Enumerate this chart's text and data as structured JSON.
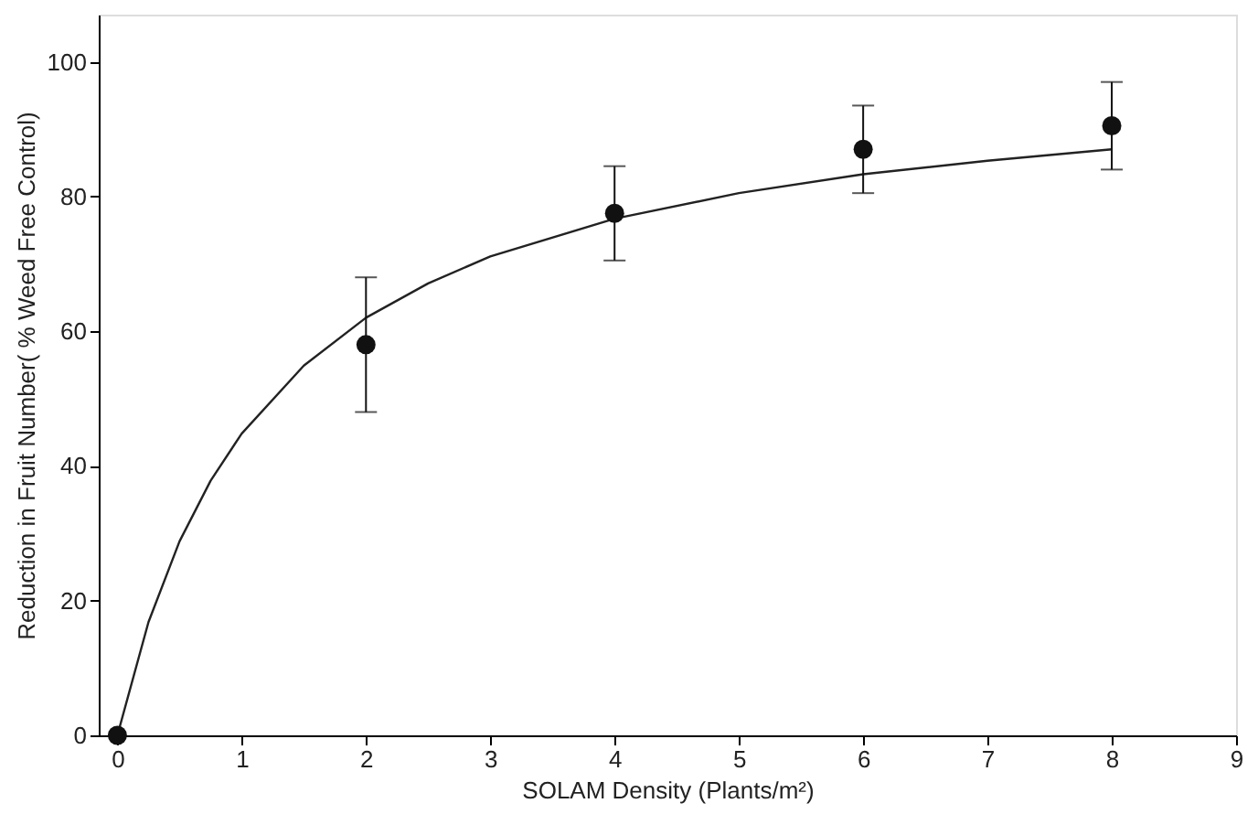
{
  "chart_data": {
    "type": "scatter",
    "xlabel": "SOLAM Density (Plants/m²)",
    "ylabel": "Reduction in Fruit Number( % Weed Free Control)",
    "xlim": [
      -0.15,
      9
    ],
    "xticks": [
      0,
      1,
      2,
      3,
      4,
      5,
      6,
      7,
      8,
      9
    ],
    "ylim": [
      0,
      107
    ],
    "yticks": [
      0,
      20,
      40,
      60,
      80,
      100
    ],
    "grid": false,
    "series": [
      {
        "type": "line",
        "color": "#222222",
        "marker": "none",
        "line_style": "solid",
        "x": [
          0,
          0.25,
          0.5,
          0.75,
          1,
          1.5,
          2,
          2.5,
          3,
          4,
          5,
          6,
          7,
          8
        ],
        "values": [
          0,
          16.8,
          28.8,
          37.8,
          44.8,
          54.9,
          62,
          67.1,
          71.1,
          76.7,
          80.5,
          83.3,
          85.3,
          87
        ]
      },
      {
        "color": "#111111",
        "marker": "circle",
        "x": [
          0,
          2,
          4,
          6,
          8
        ],
        "values": [
          0,
          58,
          77.5,
          87,
          90.5
        ],
        "errors": [
          null,
          [
            48,
            68
          ],
          [
            70.5,
            84.5
          ],
          [
            80.5,
            93.5
          ],
          [
            84,
            97
          ]
        ]
      }
    ]
  }
}
